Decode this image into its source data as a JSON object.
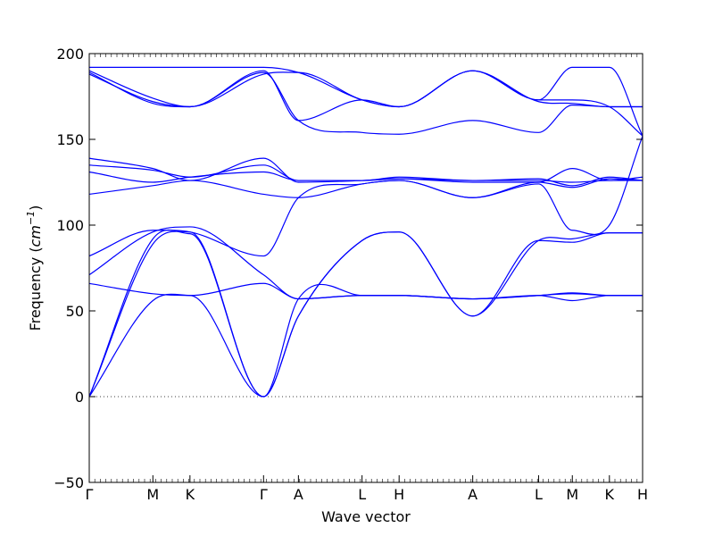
{
  "chart_data": {
    "type": "line",
    "xlabel": "Wave vector",
    "ylabel": "Frequency (",
    "ylabel_unit": "cm",
    "ylabel_exponent": "−1",
    "ylabel_close": ")",
    "ylim": [
      -50,
      200
    ],
    "yticks": [
      -50,
      0,
      50,
      100,
      150,
      200
    ],
    "ytick_labels": [
      "−50",
      "0",
      "50",
      "100",
      "150",
      "200"
    ],
    "x_points": [
      "Γ",
      "M",
      "K",
      "Γ",
      "A",
      "L",
      "H",
      "A",
      "L",
      "M",
      "K",
      "H"
    ],
    "x_positions": [
      0,
      0.115,
      0.182,
      0.315,
      0.378,
      0.493,
      0.56,
      0.693,
      0.812,
      0.873,
      0.94,
      1.0
    ],
    "zero_line": true,
    "series_color": "#0000ff",
    "series": [
      {
        "values": [
          0,
          89,
          96,
          0,
          47,
          91,
          96,
          47,
          91,
          92,
          95.5,
          95.5
        ]
      },
      {
        "values": [
          0,
          92,
          95,
          0,
          47,
          91,
          96,
          47,
          91,
          90,
          95.5,
          95.5
        ]
      },
      {
        "values": [
          0,
          56,
          59,
          0,
          57,
          59,
          59,
          57,
          59,
          56,
          59,
          59
        ]
      },
      {
        "values": [
          66,
          60,
          59,
          66,
          57,
          59,
          59,
          57,
          59,
          60.5,
          59,
          59
        ]
      },
      {
        "values": [
          71,
          96,
          99,
          71,
          57,
          59,
          59,
          57,
          59,
          60,
          59,
          59
        ]
      },
      {
        "values": [
          82,
          97,
          96,
          82,
          116,
          124,
          126,
          116,
          124,
          97,
          100,
          152
        ]
      },
      {
        "values": [
          118,
          123,
          126,
          118,
          116,
          124,
          126,
          116,
          125,
          122,
          127,
          126
        ]
      },
      {
        "values": [
          131,
          125,
          128,
          131,
          126,
          126,
          128,
          126,
          127,
          123,
          128,
          126
        ]
      },
      {
        "values": [
          135,
          132,
          128,
          135,
          126,
          126,
          127,
          126,
          126,
          125,
          126,
          126
        ]
      },
      {
        "values": [
          139,
          133,
          126,
          139,
          125,
          126,
          127,
          125,
          125,
          133,
          126,
          128
        ]
      },
      {
        "values": [
          189,
          171,
          169,
          189,
          161,
          154,
          153,
          161,
          154,
          170,
          169,
          169
        ]
      },
      {
        "values": [
          190,
          174,
          169,
          190,
          161,
          173,
          169,
          190,
          172,
          171,
          169,
          169
        ]
      },
      {
        "values": [
          188,
          172,
          169,
          188,
          189,
          173,
          169,
          190,
          173,
          173,
          169,
          152
        ]
      },
      {
        "values": [
          192,
          192,
          192,
          192,
          189,
          173,
          169,
          190,
          173,
          192,
          192,
          152
        ]
      }
    ]
  }
}
